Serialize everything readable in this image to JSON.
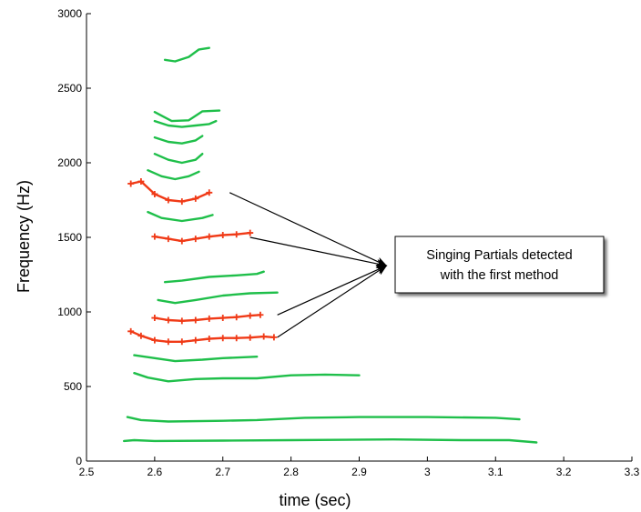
{
  "chart_data": {
    "type": "line",
    "title": "",
    "xlabel": "time (sec)",
    "ylabel": "Frequency (Hz)",
    "xlim": [
      2.5,
      3.3
    ],
    "ylim": [
      0,
      3000
    ],
    "xticks": [
      2.5,
      2.6,
      2.7,
      2.8,
      2.9,
      3.0,
      3.1,
      3.2,
      3.3
    ],
    "xtick_labels": [
      "2.5",
      "2.6",
      "2.7",
      "2.8",
      "2.9",
      "3",
      "3.1",
      "3.2",
      "3.3"
    ],
    "yticks": [
      0,
      500,
      1000,
      1500,
      2000,
      2500,
      3000
    ],
    "ytick_labels": [
      "0",
      "500",
      "1000",
      "1500",
      "2000",
      "2500",
      "3000"
    ],
    "grid": false,
    "colors": {
      "other_partials": "#1fbf4a",
      "singing_partials": "#f03a17"
    },
    "series": [
      {
        "group": "other",
        "x": [
          2.555,
          2.57,
          2.6,
          2.7,
          2.8,
          2.95,
          3.05,
          3.12,
          3.16
        ],
        "y": [
          135,
          140,
          135,
          137,
          140,
          145,
          140,
          140,
          125
        ]
      },
      {
        "group": "other",
        "x": [
          2.56,
          2.58,
          2.62,
          2.7,
          2.75,
          2.82,
          2.9,
          3.0,
          3.1,
          3.135
        ],
        "y": [
          295,
          275,
          265,
          270,
          275,
          290,
          295,
          295,
          290,
          280
        ]
      },
      {
        "group": "other",
        "x": [
          2.57,
          2.59,
          2.62,
          2.66,
          2.7,
          2.75,
          2.8,
          2.85,
          2.9
        ],
        "y": [
          590,
          560,
          535,
          550,
          555,
          555,
          575,
          580,
          575
        ]
      },
      {
        "group": "other",
        "x": [
          2.57,
          2.6,
          2.63,
          2.67,
          2.7,
          2.75
        ],
        "y": [
          710,
          690,
          670,
          680,
          690,
          700
        ]
      },
      {
        "group": "singing",
        "x": [
          2.565,
          2.58,
          2.6,
          2.62,
          2.64,
          2.66,
          2.68,
          2.7,
          2.72,
          2.74,
          2.76,
          2.775
        ],
        "y": [
          870,
          840,
          810,
          800,
          800,
          810,
          820,
          825,
          825,
          828,
          835,
          830
        ]
      },
      {
        "group": "singing",
        "x": [
          2.6,
          2.62,
          2.64,
          2.66,
          2.68,
          2.7,
          2.72,
          2.74,
          2.755
        ],
        "y": [
          960,
          945,
          940,
          945,
          955,
          960,
          965,
          975,
          980
        ]
      },
      {
        "group": "other",
        "x": [
          2.605,
          2.63,
          2.66,
          2.7,
          2.74,
          2.78
        ],
        "y": [
          1080,
          1060,
          1080,
          1110,
          1125,
          1130
        ]
      },
      {
        "group": "other",
        "x": [
          2.615,
          2.64,
          2.68,
          2.72,
          2.75,
          2.76
        ],
        "y": [
          1200,
          1210,
          1235,
          1245,
          1255,
          1270
        ]
      },
      {
        "group": "singing",
        "x": [
          2.6,
          2.62,
          2.64,
          2.66,
          2.68,
          2.7,
          2.72,
          2.74
        ],
        "y": [
          1505,
          1490,
          1475,
          1490,
          1505,
          1515,
          1520,
          1530
        ]
      },
      {
        "group": "other",
        "x": [
          2.59,
          2.61,
          2.64,
          2.67,
          2.685
        ],
        "y": [
          1670,
          1630,
          1610,
          1630,
          1650
        ]
      },
      {
        "group": "singing",
        "x": [
          2.565,
          2.58,
          2.6,
          2.62,
          2.64,
          2.66,
          2.68
        ],
        "y": [
          1860,
          1875,
          1790,
          1750,
          1740,
          1760,
          1800
        ]
      },
      {
        "group": "other",
        "x": [
          2.59,
          2.61,
          2.63,
          2.65,
          2.665
        ],
        "y": [
          1950,
          1910,
          1890,
          1910,
          1940
        ]
      },
      {
        "group": "other",
        "x": [
          2.6,
          2.62,
          2.64,
          2.66,
          2.67
        ],
        "y": [
          2060,
          2020,
          2000,
          2020,
          2060
        ]
      },
      {
        "group": "other",
        "x": [
          2.6,
          2.62,
          2.64,
          2.66,
          2.67
        ],
        "y": [
          2170,
          2140,
          2130,
          2150,
          2180
        ]
      },
      {
        "group": "other",
        "x": [
          2.6,
          2.62,
          2.64,
          2.66,
          2.68,
          2.69
        ],
        "y": [
          2280,
          2250,
          2240,
          2250,
          2260,
          2280
        ]
      },
      {
        "group": "other",
        "x": [
          2.6,
          2.625,
          2.65,
          2.67,
          2.695
        ],
        "y": [
          2340,
          2280,
          2285,
          2345,
          2350
        ]
      },
      {
        "group": "other",
        "x": [
          2.615,
          2.63,
          2.65,
          2.665,
          2.68
        ],
        "y": [
          2690,
          2680,
          2710,
          2760,
          2770
        ]
      }
    ],
    "annotation": {
      "text_lines": [
        "Singing Partials detected",
        "with the first method"
      ],
      "arrow_tail_points": [
        {
          "x": 2.71,
          "y": 1800
        },
        {
          "x": 2.74,
          "y": 1500
        },
        {
          "x": 2.78,
          "y": 980
        },
        {
          "x": 2.78,
          "y": 830
        }
      ],
      "arrow_head_point": {
        "x": 2.94,
        "y": 1310
      }
    }
  }
}
